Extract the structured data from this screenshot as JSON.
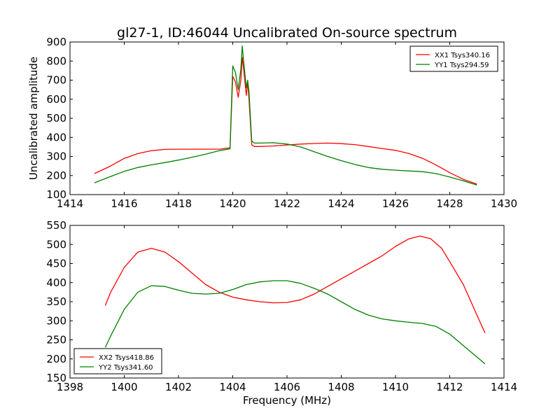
{
  "chart_data": [
    {
      "type": "line",
      "title": "gl27-1, ID:46044 Uncalibrated On-source spectrum",
      "xlabel": "",
      "ylabel": "Uncalibrated amplitude",
      "xlim": [
        1414,
        1430
      ],
      "ylim": [
        100,
        900
      ],
      "xticks": [
        1414,
        1416,
        1418,
        1420,
        1422,
        1424,
        1426,
        1428,
        1430
      ],
      "yticks": [
        100,
        200,
        300,
        400,
        500,
        600,
        700,
        800,
        900
      ],
      "legend_position": "top-right",
      "grid": false,
      "series": [
        {
          "name": "XX1 Tsys340.16",
          "color": "#ff0000",
          "x": [
            1414.9,
            1415.5,
            1416.0,
            1416.5,
            1417.0,
            1417.5,
            1418.0,
            1418.5,
            1419.0,
            1419.5,
            1419.9,
            1420.0,
            1420.1,
            1420.2,
            1420.3,
            1420.35,
            1420.4,
            1420.5,
            1420.55,
            1420.6,
            1420.7,
            1420.8,
            1421.0,
            1421.5,
            1422.0,
            1422.5,
            1423.0,
            1423.5,
            1424.0,
            1424.5,
            1425.0,
            1425.5,
            1426.0,
            1426.5,
            1427.0,
            1427.5,
            1428.0,
            1428.5,
            1429.0
          ],
          "y": [
            210,
            250,
            290,
            315,
            330,
            337,
            338,
            338,
            338,
            338,
            345,
            720,
            690,
            610,
            700,
            820,
            760,
            620,
            690,
            600,
            360,
            352,
            352,
            355,
            360,
            365,
            368,
            370,
            367,
            362,
            352,
            342,
            332,
            315,
            290,
            255,
            215,
            180,
            155
          ]
        },
        {
          "name": "YY1 Tsys294.59",
          "color": "#008000",
          "x": [
            1414.9,
            1415.5,
            1416.0,
            1416.5,
            1417.0,
            1417.5,
            1418.0,
            1418.5,
            1419.0,
            1419.5,
            1419.9,
            1420.0,
            1420.1,
            1420.2,
            1420.3,
            1420.35,
            1420.4,
            1420.5,
            1420.55,
            1420.6,
            1420.7,
            1420.8,
            1421.0,
            1421.5,
            1422.0,
            1422.5,
            1423.0,
            1423.5,
            1424.0,
            1424.5,
            1425.0,
            1425.5,
            1426.0,
            1426.5,
            1427.0,
            1427.5,
            1428.0,
            1428.5,
            1429.0
          ],
          "y": [
            162,
            195,
            222,
            242,
            256,
            268,
            281,
            296,
            312,
            330,
            340,
            775,
            740,
            650,
            760,
            880,
            800,
            660,
            700,
            640,
            380,
            370,
            370,
            372,
            365,
            350,
            325,
            300,
            278,
            258,
            242,
            233,
            228,
            224,
            220,
            210,
            192,
            172,
            150
          ]
        }
      ]
    },
    {
      "type": "line",
      "title": "",
      "xlabel": "Frequency (MHz)",
      "ylabel": "",
      "xlim": [
        1398,
        1414
      ],
      "ylim": [
        150,
        550
      ],
      "xticks": [
        1398,
        1400,
        1402,
        1404,
        1406,
        1408,
        1410,
        1412,
        1414
      ],
      "yticks": [
        150,
        200,
        250,
        300,
        350,
        400,
        450,
        500,
        550
      ],
      "legend_position": "bottom-left",
      "grid": false,
      "series": [
        {
          "name": "XX2 Tsys418.86",
          "color": "#ff0000",
          "x": [
            1399.3,
            1399.5,
            1400.0,
            1400.5,
            1401.0,
            1401.5,
            1402.0,
            1402.5,
            1403.0,
            1403.5,
            1404.0,
            1404.5,
            1405.0,
            1405.5,
            1406.0,
            1406.5,
            1407.0,
            1407.5,
            1408.0,
            1408.5,
            1409.0,
            1409.5,
            1410.0,
            1410.5,
            1410.9,
            1411.3,
            1411.7,
            1412.0,
            1412.5,
            1413.0,
            1413.3
          ],
          "y": [
            340,
            375,
            440,
            480,
            490,
            480,
            455,
            425,
            395,
            375,
            362,
            355,
            350,
            347,
            348,
            355,
            370,
            390,
            410,
            430,
            450,
            470,
            495,
            515,
            522,
            515,
            490,
            455,
            395,
            315,
            268
          ]
        },
        {
          "name": "YY2 Tsys341.60",
          "color": "#008000",
          "x": [
            1399.3,
            1399.5,
            1400.0,
            1400.5,
            1401.0,
            1401.5,
            1402.0,
            1402.5,
            1403.0,
            1403.5,
            1404.0,
            1404.5,
            1405.0,
            1405.5,
            1406.0,
            1406.5,
            1407.0,
            1407.5,
            1408.0,
            1408.5,
            1409.0,
            1409.5,
            1410.0,
            1410.5,
            1411.0,
            1411.5,
            1412.0,
            1412.5,
            1413.0,
            1413.3
          ],
          "y": [
            230,
            260,
            330,
            375,
            392,
            390,
            380,
            372,
            370,
            372,
            382,
            395,
            402,
            405,
            405,
            398,
            385,
            370,
            350,
            330,
            315,
            305,
            300,
            296,
            293,
            285,
            265,
            235,
            205,
            187
          ]
        }
      ]
    }
  ]
}
